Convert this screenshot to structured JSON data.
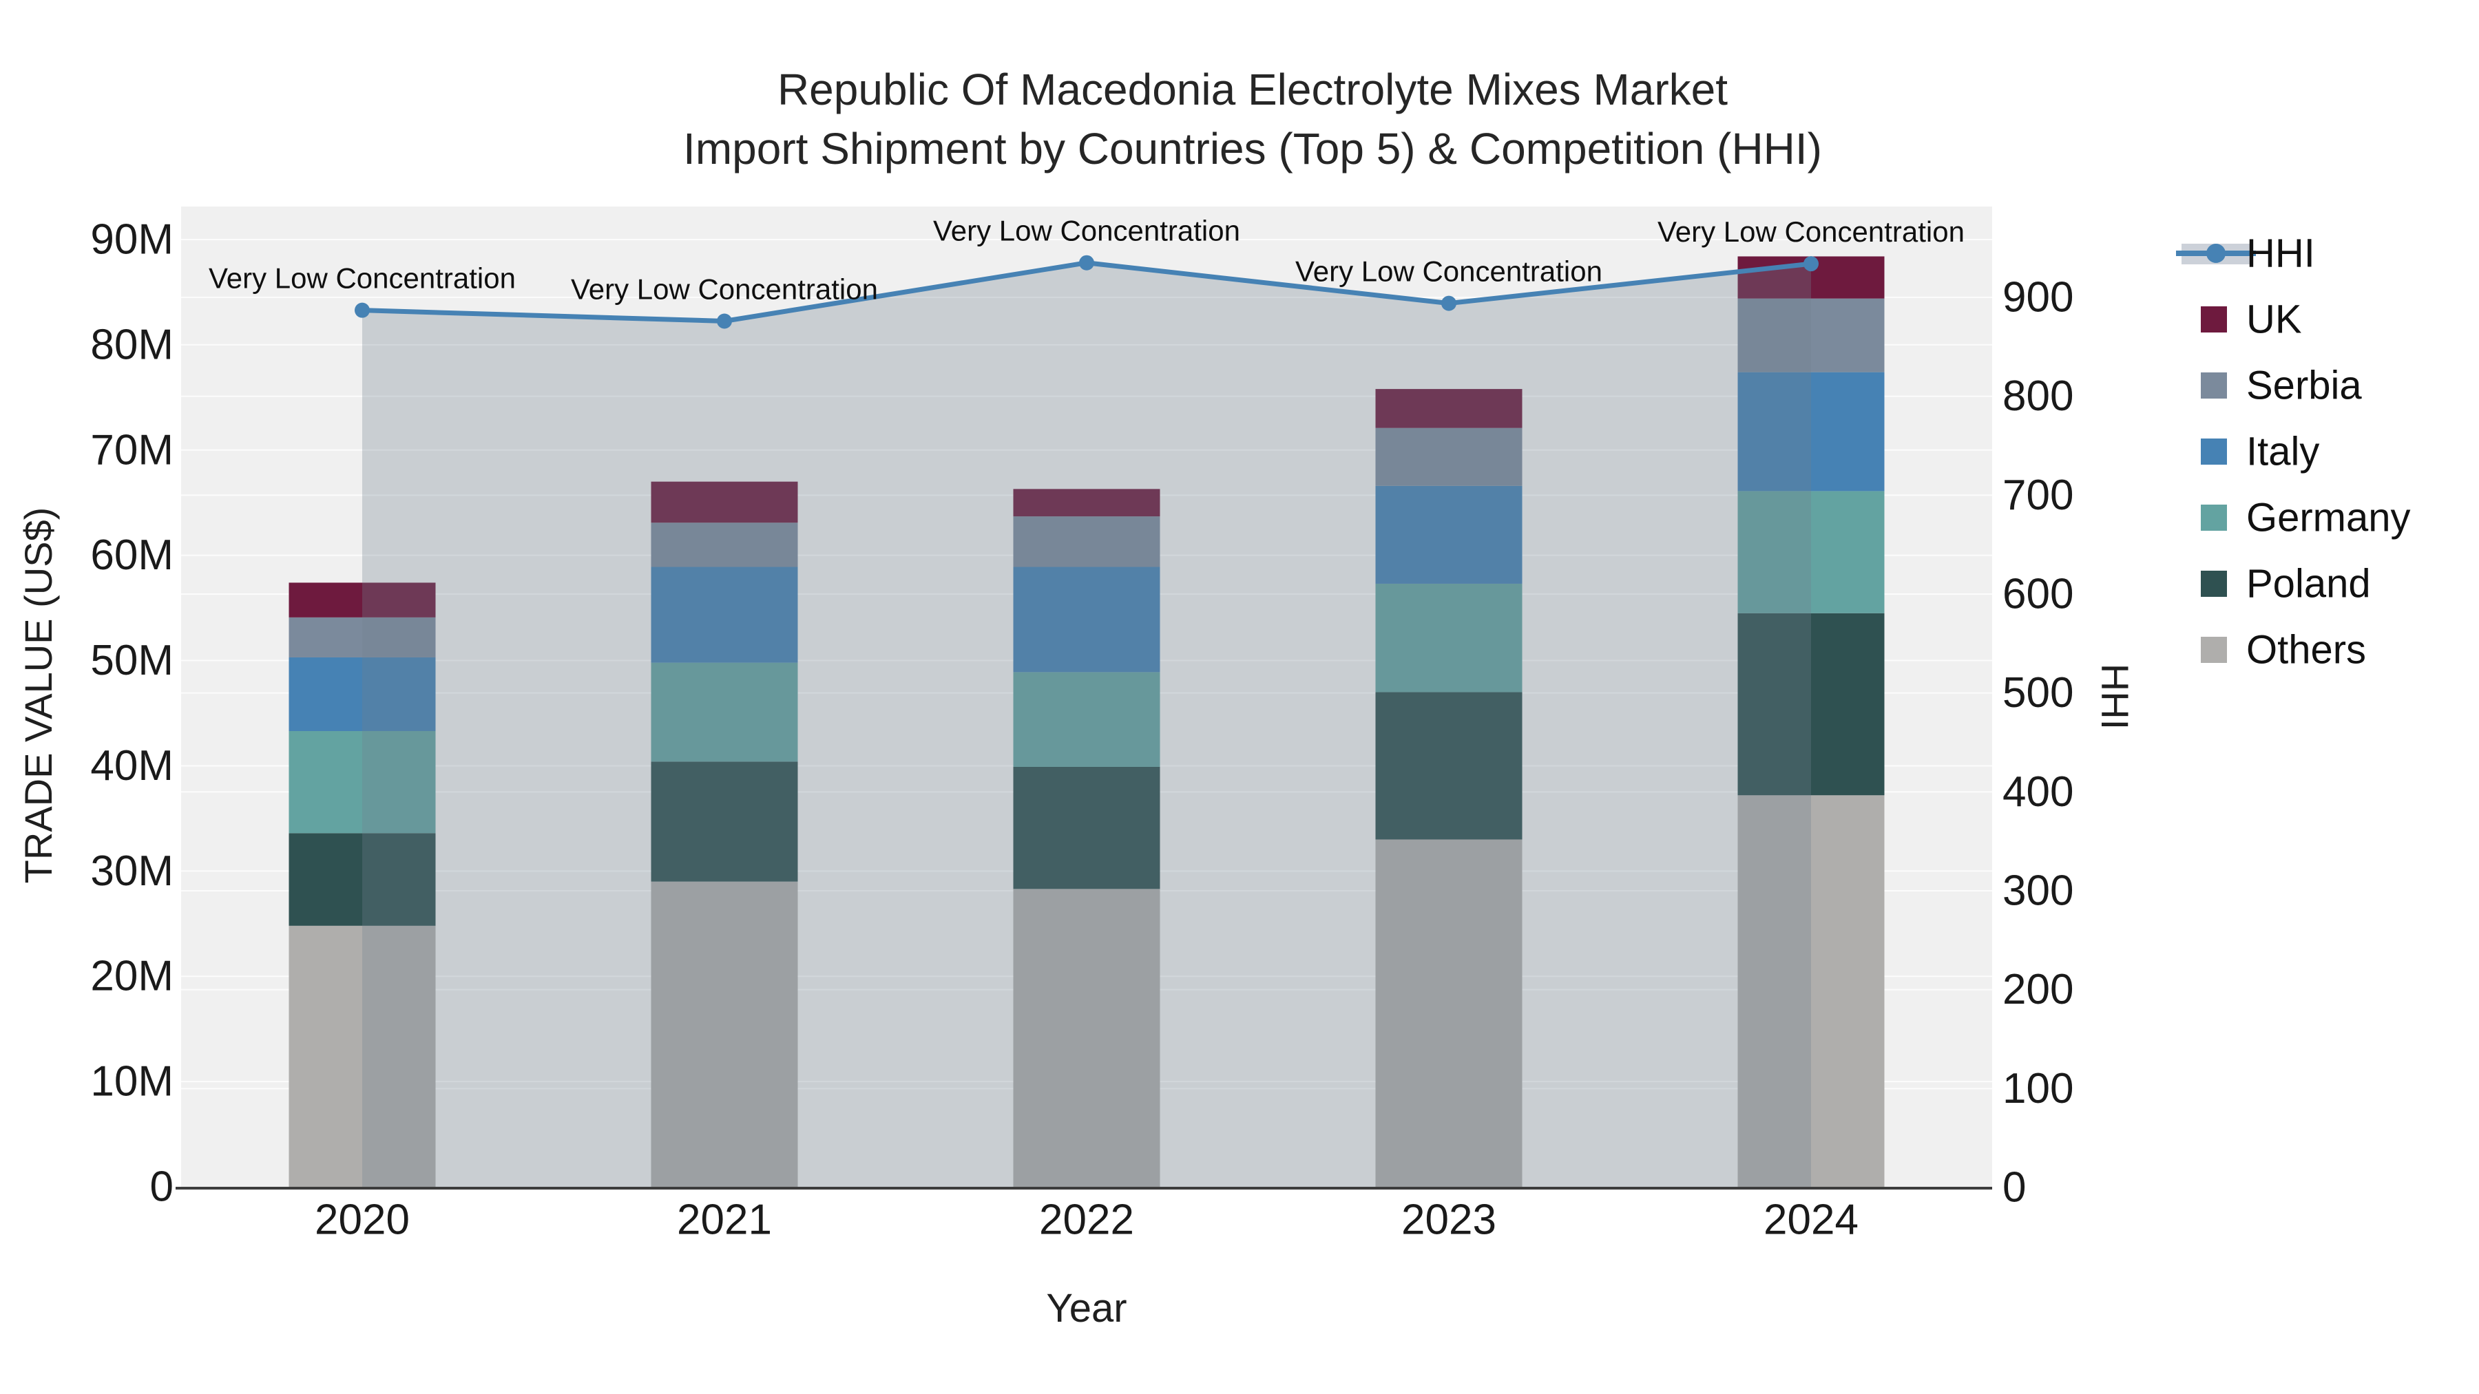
{
  "title": {
    "line1": "Republic Of Macedonia Electrolyte Mixes Market",
    "line2": "Import Shipment by Countries (Top 5) & Competition (HHI)"
  },
  "axes": {
    "y_left": {
      "title": "TRADE VALUE (US$)",
      "ticks": [
        "0",
        "10M",
        "20M",
        "30M",
        "40M",
        "50M",
        "60M",
        "70M",
        "80M",
        "90M"
      ],
      "min": 0,
      "max": 90
    },
    "y_right": {
      "title": "HHI",
      "ticks": [
        "0",
        "100",
        "200",
        "300",
        "400",
        "500",
        "600",
        "700",
        "800",
        "900"
      ],
      "min": 0,
      "max": 900
    },
    "x": {
      "title": "Year",
      "categories": [
        "2020",
        "2021",
        "2022",
        "2023",
        "2024"
      ]
    }
  },
  "legend": {
    "items": [
      {
        "label": "HHI",
        "type": "line",
        "color": "#4682B4"
      },
      {
        "label": "UK",
        "type": "square",
        "color": "#6E1A3E"
      },
      {
        "label": "Serbia",
        "type": "square",
        "color": "#7B8A9C"
      },
      {
        "label": "Italy",
        "type": "square",
        "color": "#4682B4"
      },
      {
        "label": "Germany",
        "type": "square",
        "color": "#63A3A1"
      },
      {
        "label": "Poland",
        "type": "square",
        "color": "#2F5151"
      },
      {
        "label": "Others",
        "type": "square",
        "color": "#AFAEAC"
      }
    ]
  },
  "chart_data": {
    "type": "bar+line",
    "title": "Republic Of Macedonia Electrolyte Mixes Market Import Shipment by Countries (Top 5) & Competition (HHI)",
    "xlabel": "Year",
    "ylabel_left": "TRADE VALUE (US$)",
    "ylabel_right": "HHI",
    "unit_left": "millions USD",
    "categories": [
      "2020",
      "2021",
      "2022",
      "2023",
      "2024"
    ],
    "stack_order_bottom_to_top": [
      "Others",
      "Poland",
      "Germany",
      "Italy",
      "Serbia",
      "UK"
    ],
    "series": [
      {
        "name": "Others",
        "color": "#AFAEAC",
        "values": [
          24.8,
          29.0,
          28.3,
          33.0,
          37.2
        ]
      },
      {
        "name": "Poland",
        "color": "#2F5151",
        "values": [
          8.8,
          11.4,
          11.6,
          14.0,
          17.3
        ]
      },
      {
        "name": "Germany",
        "color": "#63A3A1",
        "values": [
          9.7,
          9.4,
          9.0,
          10.3,
          11.6
        ]
      },
      {
        "name": "Italy",
        "color": "#4682B4",
        "values": [
          7.0,
          9.1,
          10.0,
          9.3,
          11.3
        ]
      },
      {
        "name": "Serbia",
        "color": "#7B8A9C",
        "values": [
          3.8,
          4.2,
          4.8,
          5.5,
          7.0
        ]
      },
      {
        "name": "UK",
        "color": "#6E1A3E",
        "values": [
          3.3,
          3.9,
          2.6,
          3.7,
          4.0
        ]
      }
    ],
    "bar_totals": [
      57.4,
      67.0,
      66.3,
      75.8,
      88.4
    ],
    "line_series": {
      "name": "HHI",
      "axis": "right",
      "color": "#4682B4",
      "values": [
        887,
        876,
        935,
        894,
        934
      ]
    },
    "area_fill": "rgba(112,128,144,0.30)",
    "annotations": [
      {
        "x": "2020",
        "text": "Very Low Concentration"
      },
      {
        "x": "2021",
        "text": "Very Low Concentration"
      },
      {
        "x": "2022",
        "text": "Very Low Concentration"
      },
      {
        "x": "2023",
        "text": "Very Low Concentration"
      },
      {
        "x": "2024",
        "text": "Very Low Concentration"
      }
    ],
    "ylim_left": [
      0,
      90
    ],
    "ylim_right": [
      0,
      900
    ],
    "grid": true,
    "legend_position": "right",
    "plot_background": "#f0f0f0"
  },
  "colors": {
    "line": "#4682B4",
    "area": "rgba(112,128,144,0.30)",
    "plot_bg": "#f0f0f0",
    "gridline": "rgba(255,255,255,0.8)",
    "axis_line": "#3d3d3d",
    "legend_band": "#ccd1d9"
  }
}
